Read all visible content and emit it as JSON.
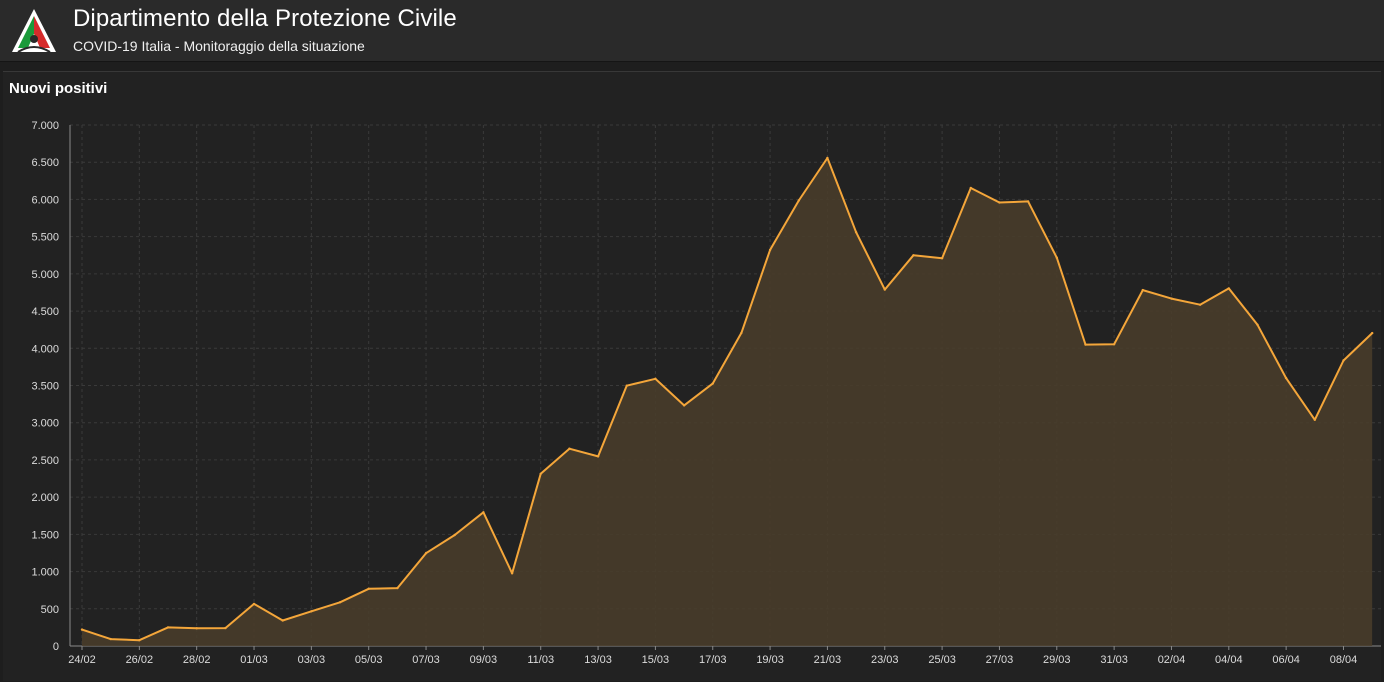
{
  "header": {
    "title": "Dipartimento della Protezione Civile",
    "subtitle": "COVID-19 Italia - Monitoraggio della situazione"
  },
  "panel": {
    "title": "Nuovi positivi"
  },
  "colors": {
    "line": "#f4a63a",
    "area": "#4a3d2a",
    "grid": "#3a3a3a"
  },
  "chart_data": {
    "type": "area",
    "title": "",
    "xlabel": "",
    "ylabel": "",
    "ylim": [
      0,
      7000
    ],
    "yticks": [
      0,
      500,
      1000,
      1500,
      2000,
      2500,
      3000,
      3500,
      4000,
      4500,
      5000,
      5500,
      6000,
      6500,
      7000
    ],
    "ytick_labels": [
      "0",
      "500",
      "1.000",
      "1.500",
      "2.000",
      "2.500",
      "3.000",
      "3.500",
      "4.000",
      "4.500",
      "5.000",
      "5.500",
      "6.000",
      "6.500",
      "7.000"
    ],
    "xtick_labels": [
      "24/02",
      "26/02",
      "28/02",
      "01/03",
      "03/03",
      "05/03",
      "07/03",
      "09/03",
      "11/03",
      "13/03",
      "15/03",
      "17/03",
      "19/03",
      "21/03",
      "23/03",
      "25/03",
      "27/03",
      "29/03",
      "31/03",
      "02/04",
      "04/04",
      "06/04",
      "08/04"
    ],
    "grid": true,
    "legend": "none",
    "x": [
      "24/02",
      "25/02",
      "26/02",
      "27/02",
      "28/02",
      "29/02",
      "01/03",
      "02/03",
      "03/03",
      "04/03",
      "05/03",
      "06/03",
      "07/03",
      "08/03",
      "09/03",
      "10/03",
      "11/03",
      "12/03",
      "13/03",
      "14/03",
      "15/03",
      "16/03",
      "17/03",
      "18/03",
      "19/03",
      "20/03",
      "21/03",
      "22/03",
      "23/03",
      "24/03",
      "25/03",
      "26/03",
      "27/03",
      "28/03",
      "29/03",
      "30/03",
      "31/03",
      "01/04",
      "02/04",
      "03/04",
      "04/04",
      "05/04",
      "06/04",
      "07/04",
      "08/04",
      "09/04"
    ],
    "series": [
      {
        "values": [
          221,
          93,
          78,
          250,
          238,
          240,
          566,
          342,
          466,
          587,
          769,
          778,
          1247,
          1492,
          1797,
          977,
          2313,
          2651,
          2547,
          3497,
          3590,
          3233,
          3526,
          4207,
          5322,
          5986,
          6557,
          5560,
          4789,
          5249,
          5210,
          6153,
          5959,
          5974,
          5217,
          4050,
          4053,
          4782,
          4668,
          4585,
          4805,
          4316,
          3599,
          3039,
          3836,
          4204
        ]
      }
    ]
  }
}
